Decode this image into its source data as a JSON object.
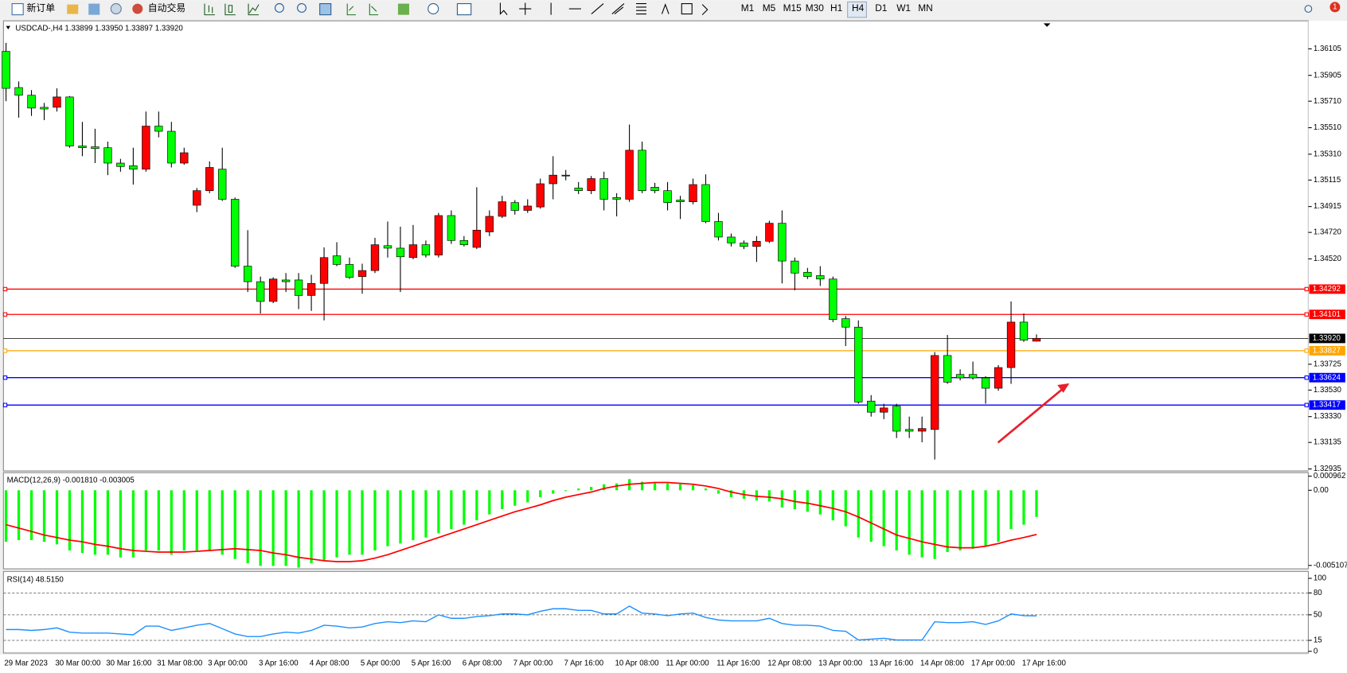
{
  "toolbar": {
    "new_order": "新订单",
    "auto_trading": "自动交易",
    "timeframes": [
      "M1",
      "M5",
      "M15",
      "M30",
      "H1",
      "H4",
      "D1",
      "W1",
      "MN"
    ],
    "badge": "1"
  },
  "chart_data": [
    {
      "type": "candlestick",
      "title": "USDCAD-,H4  1.33899 1.33950 1.33897 1.33920",
      "categories": [
        "29 Mar 2023",
        null,
        null,
        null,
        "30 Mar 00:00",
        null,
        null,
        null,
        "30 Mar 16:00",
        null,
        null,
        null,
        "31 Mar 08:00",
        null,
        null,
        null,
        "3 Apr 00:00",
        null,
        null,
        null,
        "3 Apr 16:00",
        null,
        null,
        null,
        "4 Apr 08:00",
        null,
        null,
        null,
        "5 Apr 00:00",
        null,
        null,
        null,
        "5 Apr 16:00",
        null,
        null,
        null,
        "6 Apr 08:00",
        null,
        null,
        null,
        "7 Apr 00:00",
        null,
        null,
        null,
        "7 Apr 16:00",
        null,
        null,
        null,
        "10 Apr 08:00",
        null,
        null,
        null,
        "11 Apr 00:00",
        null,
        null,
        null,
        "11 Apr 16:00",
        null,
        null,
        null,
        "12 Apr 08:00",
        null,
        null,
        null,
        "13 Apr 00:00",
        null,
        null,
        null,
        "13 Apr 16:00",
        null,
        null,
        null,
        "14 Apr 08:00",
        null,
        null,
        null,
        "17 Apr 00:00",
        null,
        null,
        null,
        "17 Apr 16:00",
        null
      ],
      "open": [
        1.36086,
        1.35813,
        1.35755,
        1.35664,
        1.35664,
        1.35742,
        1.35372,
        1.35366,
        1.35359,
        1.35243,
        1.35223,
        1.35197,
        1.35522,
        1.35483,
        1.35243,
        1.34925,
        1.35035,
        1.35197,
        1.3497,
        1.34465,
        1.34348,
        1.34199,
        1.34361,
        1.34361,
        1.34244,
        1.34335,
        1.34543,
        1.34478,
        1.34387,
        1.34432,
        1.3462,
        1.34601,
        1.3453,
        1.34627,
        1.34549,
        1.34847,
        1.34659,
        1.34607,
        1.34724,
        1.34841,
        1.34945,
        1.34886,
        1.34912,
        1.35087,
        1.35146,
        1.35055,
        1.35035,
        1.35126,
        1.34983,
        1.3497,
        1.3534,
        1.35061,
        1.35035,
        1.34964,
        1.34951,
        1.35081,
        1.34802,
        1.34685,
        1.3464,
        1.34614,
        1.34653,
        1.34789,
        1.34504,
        1.34419,
        1.34394,
        1.34368,
        1.34069,
        1.34005,
        1.33447,
        1.33363,
        1.33408,
        1.33233,
        1.3322,
        1.33233,
        1.33791,
        1.33648,
        1.33648,
        1.33622,
        1.33544,
        1.337,
        1.34043,
        1.33899
      ],
      "high": [
        1.3615,
        1.35859,
        1.35794,
        1.35697,
        1.35807,
        1.35749,
        1.35554,
        1.35502,
        1.35405,
        1.35275,
        1.35359,
        1.35632,
        1.35632,
        1.35554,
        1.35359,
        1.35055,
        1.35256,
        1.35359,
        1.34983,
        1.34737,
        1.34387,
        1.34381,
        1.34413,
        1.34413,
        1.344,
        1.34607,
        1.34646,
        1.3453,
        1.34484,
        1.34679,
        1.34802,
        1.34763,
        1.34776,
        1.34659,
        1.34867,
        1.34886,
        1.34692,
        1.35061,
        1.34886,
        1.34996,
        1.34964,
        1.3497,
        1.35126,
        1.35295,
        1.35191,
        1.351,
        1.35146,
        1.35178,
        1.35016,
        1.35534,
        1.35405,
        1.35094,
        1.351,
        1.34996,
        1.35126,
        1.35158,
        1.34867,
        1.34711,
        1.34659,
        1.34692,
        1.34808,
        1.34886,
        1.3453,
        1.34452,
        1.34465,
        1.34387,
        1.34089,
        1.34056,
        1.33492,
        1.33427,
        1.33427,
        1.3333,
        1.3333,
        1.33817,
        1.33946,
        1.33687,
        1.33745,
        1.33635,
        1.33719,
        1.34199,
        1.34108,
        1.3395
      ],
      "low": [
        1.3571,
        1.35586,
        1.35599,
        1.35567,
        1.35632,
        1.35359,
        1.35295,
        1.35243,
        1.35152,
        1.35178,
        1.35081,
        1.35178,
        1.35437,
        1.3521,
        1.3523,
        1.34873,
        1.35016,
        1.34957,
        1.34452,
        1.3427,
        1.34108,
        1.34186,
        1.3427,
        1.34141,
        1.34128,
        1.34056,
        1.34465,
        1.34368,
        1.34257,
        1.34413,
        1.3453,
        1.3427,
        1.34517,
        1.3453,
        1.3453,
        1.34633,
        1.34614,
        1.34594,
        1.34692,
        1.34828,
        1.34854,
        1.34867,
        1.34899,
        1.3497,
        1.35113,
        1.35009,
        1.35009,
        1.34886,
        1.34841,
        1.34951,
        1.35016,
        1.35016,
        1.34886,
        1.34821,
        1.34932,
        1.34789,
        1.34659,
        1.34614,
        1.34594,
        1.34497,
        1.3464,
        1.34335,
        1.34283,
        1.34368,
        1.34316,
        1.34043,
        1.33862,
        1.33427,
        1.3333,
        1.33311,
        1.33168,
        1.33168,
        1.33136,
        1.33006,
        1.33577,
        1.33603,
        1.33609,
        1.33427,
        1.33525,
        1.33577,
        1.33894,
        1.33897
      ],
      "close": [
        1.35807,
        1.35755,
        1.35658,
        1.35651,
        1.35742,
        1.35372,
        1.35359,
        1.35353,
        1.35243,
        1.35217,
        1.35197,
        1.35522,
        1.35483,
        1.35243,
        1.35321,
        1.35035,
        1.3521,
        1.3497,
        1.34465,
        1.34348,
        1.34199,
        1.34368,
        1.34348,
        1.34244,
        1.34335,
        1.3453,
        1.34478,
        1.34381,
        1.34432,
        1.34627,
        1.34601,
        1.34536,
        1.34627,
        1.34549,
        1.34847,
        1.34659,
        1.34627,
        1.34737,
        1.34841,
        1.34951,
        1.34886,
        1.34919,
        1.35087,
        1.35152,
        1.35152,
        1.35035,
        1.35126,
        1.3497,
        1.3497,
        1.3534,
        1.35035,
        1.35035,
        1.34945,
        1.34951,
        1.35081,
        1.34802,
        1.34685,
        1.3464,
        1.34614,
        1.34653,
        1.34789,
        1.34504,
        1.34413,
        1.34387,
        1.34368,
        1.34063,
        1.34005,
        1.3344,
        1.33363,
        1.33395,
        1.3322,
        1.3322,
        1.3324,
        1.33791,
        1.3359,
        1.33622,
        1.33622,
        1.33544,
        1.337,
        1.34043,
        1.33907,
        1.3392
      ],
      "up_color": "#ff0000",
      "down_color": "#00ff00",
      "ylim": [
        1.3292,
        1.3631
      ],
      "yticks": [
        1.36105,
        1.35905,
        {
          "value": 1.3571,
          "label": "1.35710"
        },
        {
          "value": 1.3551,
          "label": "1.35510"
        },
        {
          "value": 1.3531,
          "label": "1.35310"
        },
        1.35115,
        1.34915,
        {
          "value": 1.3472,
          "label": "1.34720"
        },
        {
          "value": 1.3452,
          "label": "1.34520"
        },
        1.33725,
        {
          "value": 1.3353,
          "label": "1.33530"
        },
        {
          "value": 1.3333,
          "label": "1.33330"
        },
        1.33135,
        1.32935
      ],
      "levels": [
        {
          "value": 1.34292,
          "color": "#ff0000"
        },
        {
          "value": 1.34101,
          "color": "#ff0000"
        },
        {
          "value": 1.33827,
          "color": "#ffa500"
        },
        {
          "value": 1.33624,
          "color": "#0000ff"
        },
        {
          "value": 1.33417,
          "color": "#0000ff"
        }
      ],
      "last_price": {
        "value": 1.3392,
        "label": "1.33920"
      }
    },
    {
      "type": "macd",
      "title": "MACD(12,26,9) -0.001810 -0.003005",
      "series": [
        {
          "style": "bar",
          "color": "#00ff00",
          "values": [
            -0.0035,
            -0.00339,
            -0.00339,
            -0.0035,
            -0.00368,
            -0.00409,
            -0.00426,
            -0.00438,
            -0.00438,
            -0.00456,
            -0.00456,
            -0.00409,
            -0.00409,
            -0.00438,
            -0.00409,
            -0.00409,
            -0.00409,
            -0.00438,
            -0.00467,
            -0.00496,
            -0.00514,
            -0.00514,
            -0.00514,
            -0.00526,
            -0.00496,
            -0.00479,
            -0.00456,
            -0.00438,
            -0.00438,
            -0.00409,
            -0.0038,
            -0.00362,
            -0.00339,
            -0.00321,
            -0.00292,
            -0.00263,
            -0.00234,
            -0.00204,
            -0.00164,
            -0.00128,
            -0.00105,
            -0.00082,
            -0.00047,
            -0.00023,
            -6e-05,
            0.00012,
            0.00023,
            0.00041,
            0.00047,
            0.00076,
            0.00058,
            0.00053,
            0.00047,
            0.00041,
            0.00035,
            0.00012,
            -0.00023,
            -0.00047,
            -0.00058,
            -0.0007,
            -0.00076,
            -0.00117,
            -0.00128,
            -0.00146,
            -0.00164,
            -0.00204,
            -0.00245,
            -0.00321,
            -0.0035,
            -0.0038,
            -0.00409,
            -0.00438,
            -0.00456,
            -0.00467,
            -0.0042,
            -0.00409,
            -0.00397,
            -0.0038,
            -0.0035,
            -0.00263,
            -0.00234,
            -0.00181
          ]
        },
        {
          "style": "line",
          "color": "#ff0000",
          "values": [
            -0.00234,
            -0.00257,
            -0.0028,
            -0.00304,
            -0.00321,
            -0.00339,
            -0.0035,
            -0.00368,
            -0.0038,
            -0.00397,
            -0.00409,
            -0.00415,
            -0.0042,
            -0.0042,
            -0.0042,
            -0.00415,
            -0.00409,
            -0.00403,
            -0.00397,
            -0.00403,
            -0.00409,
            -0.00426,
            -0.00438,
            -0.00456,
            -0.00467,
            -0.00479,
            -0.00485,
            -0.00485,
            -0.00479,
            -0.00461,
            -0.00438,
            -0.00409,
            -0.0038,
            -0.0035,
            -0.00321,
            -0.00292,
            -0.00263,
            -0.00234,
            -0.00204,
            -0.00175,
            -0.00146,
            -0.00123,
            -0.00099,
            -0.0007,
            -0.00047,
            -0.00029,
            -0.00012,
            0.00012,
            0.00029,
            0.00041,
            0.00047,
            0.00053,
            0.00053,
            0.00047,
            0.00041,
            0.00029,
            0.00012,
            -0.00012,
            -0.00029,
            -0.00041,
            -0.00047,
            -0.00058,
            -0.00076,
            -0.00088,
            -0.00105,
            -0.00123,
            -0.00146,
            -0.00181,
            -0.00222,
            -0.00263,
            -0.00304,
            -0.00327,
            -0.0035,
            -0.00368,
            -0.00385,
            -0.00391,
            -0.00391,
            -0.0038,
            -0.00362,
            -0.00339,
            -0.00321,
            -0.003005
          ]
        }
      ],
      "ylim": [
        -0.00534,
        0.00114
      ],
      "yticks": [
        0.000962,
        {
          "value": 0,
          "label": "0.00"
        },
        -0.005107
      ]
    },
    {
      "type": "line",
      "title": "RSI(14) 48.5150",
      "color": "#1e90ff",
      "values": [
        29.8,
        29.8,
        28.6,
        29.8,
        32.1,
        26.2,
        25.0,
        25.0,
        25.0,
        23.8,
        22.6,
        34.5,
        34.5,
        28.6,
        32.1,
        35.7,
        38.1,
        31.0,
        23.8,
        20.2,
        20.2,
        23.8,
        26.2,
        25.0,
        28.6,
        35.7,
        34.5,
        32.1,
        33.3,
        38.1,
        40.5,
        39.3,
        41.7,
        40.5,
        50.0,
        45.2,
        45.2,
        47.6,
        48.8,
        51.2,
        51.2,
        50.0,
        54.8,
        58.3,
        58.3,
        56.0,
        56.0,
        51.2,
        51.2,
        61.9,
        52.4,
        51.2,
        48.8,
        51.2,
        52.4,
        46.4,
        42.9,
        41.7,
        41.7,
        41.7,
        45.2,
        38.1,
        35.7,
        35.7,
        34.5,
        28.6,
        27.4,
        15.5,
        16.7,
        17.9,
        15.5,
        15.5,
        15.5,
        40.5,
        39.3,
        39.3,
        40.5,
        36.9,
        41.7,
        51.2,
        48.8,
        48.515
      ],
      "ylim": [
        -1.2,
        108.3
      ],
      "yticks": [
        100,
        80,
        50,
        15,
        0
      ],
      "levels": [
        80,
        50,
        15
      ]
    }
  ]
}
